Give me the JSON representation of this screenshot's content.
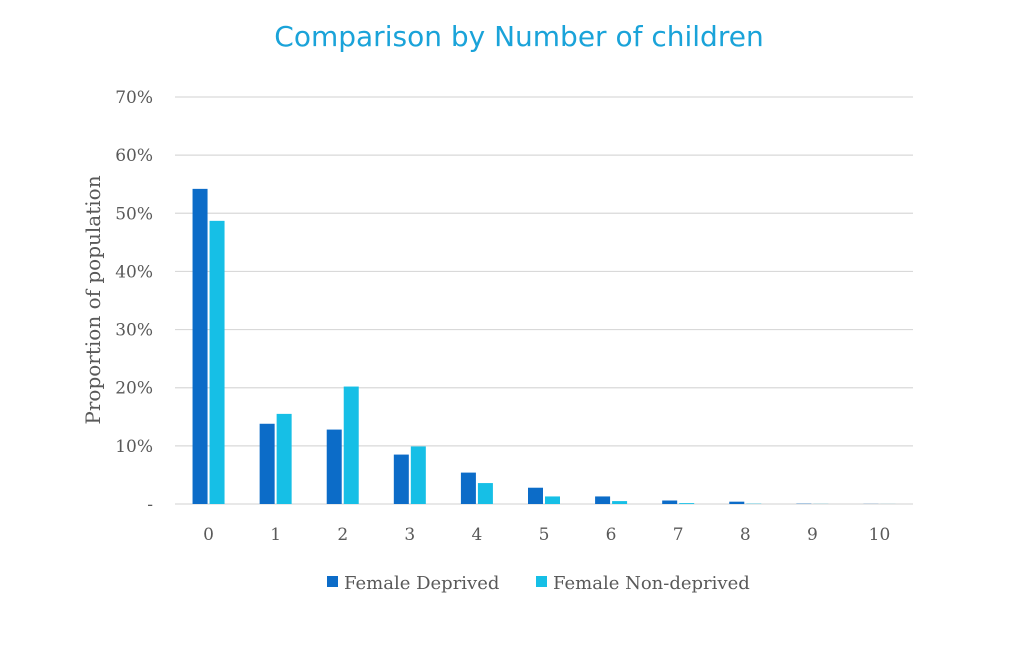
{
  "chart_data": {
    "type": "bar",
    "title": "Comparison by Number of children",
    "xlabel": "",
    "ylabel": "Proportion of population",
    "categories": [
      "0",
      "1",
      "2",
      "3",
      "4",
      "5",
      "6",
      "7",
      "8",
      "9",
      "10"
    ],
    "ylim": [
      0,
      70
    ],
    "yticks": [
      0,
      10,
      20,
      30,
      40,
      50,
      60,
      70
    ],
    "ytick_labels": [
      "-",
      "10%",
      "20%",
      "30%",
      "40%",
      "50%",
      "60%",
      "70%"
    ],
    "grid": true,
    "legend_position": "bottom",
    "series": [
      {
        "name": "Female Deprived",
        "color": "#0c6cc8",
        "values": [
          54.2,
          13.8,
          12.8,
          8.5,
          5.4,
          2.8,
          1.3,
          0.6,
          0.4,
          0.05,
          0.02
        ]
      },
      {
        "name": "Female Non-deprived",
        "color": "#16bfe6",
        "values": [
          48.7,
          15.5,
          20.2,
          9.9,
          3.6,
          1.3,
          0.5,
          0.15,
          0.05,
          0.02,
          0.01
        ]
      }
    ]
  }
}
